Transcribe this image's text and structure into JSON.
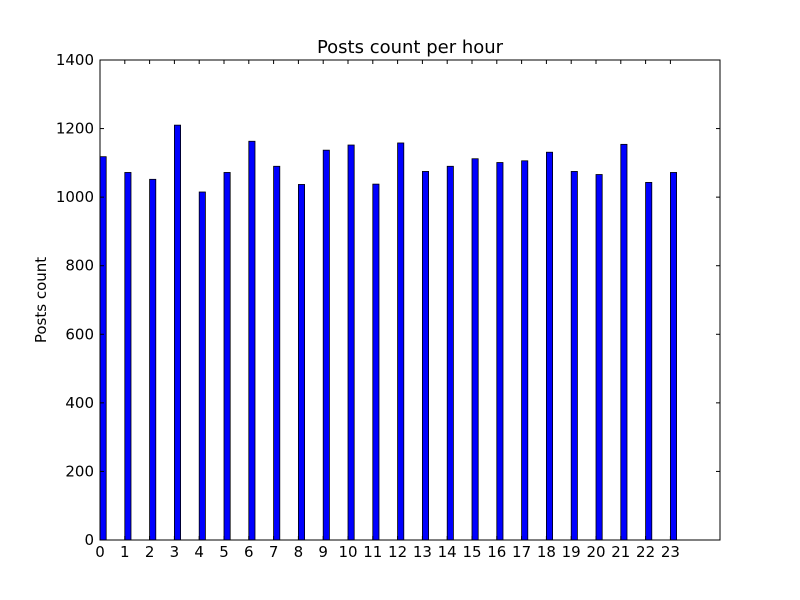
{
  "chart_data": {
    "type": "bar",
    "title": "Posts count per hour",
    "xlabel": "",
    "ylabel": "Posts count",
    "categories": [
      "0",
      "1",
      "2",
      "3",
      "4",
      "5",
      "6",
      "7",
      "8",
      "9",
      "10",
      "11",
      "12",
      "13",
      "14",
      "15",
      "16",
      "17",
      "18",
      "19",
      "20",
      "21",
      "22",
      "23"
    ],
    "values": [
      1118,
      1072,
      1052,
      1210,
      1015,
      1072,
      1163,
      1090,
      1037,
      1137,
      1152,
      1038,
      1158,
      1075,
      1090,
      1112,
      1101,
      1106,
      1131,
      1075,
      1066,
      1154,
      1043,
      1072
    ],
    "ylim": [
      0,
      1400
    ],
    "yticks": [
      0,
      200,
      400,
      600,
      800,
      1000,
      1200,
      1400
    ],
    "xlim": [
      0,
      25
    ],
    "bar_color": "#0000ff",
    "edge_color": "#000000",
    "grid": false,
    "legend": "none"
  }
}
